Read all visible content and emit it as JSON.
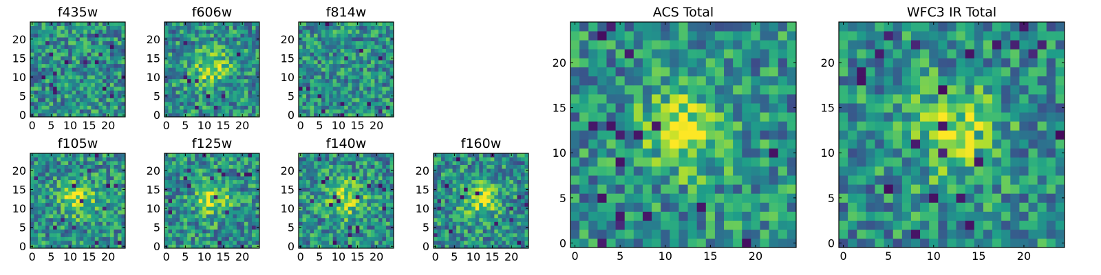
{
  "chart_data": [
    {
      "type": "heatmap",
      "title": "f435w",
      "grid_size": 25,
      "xlim": [
        0,
        24
      ],
      "ylim": [
        0,
        24
      ],
      "xticks": [
        "0",
        "5",
        "10",
        "15",
        "20"
      ],
      "yticks": [
        "0",
        "5",
        "10",
        "15",
        "20"
      ],
      "colormap": "viridis",
      "centered_blob": false
    },
    {
      "type": "heatmap",
      "title": "f606w",
      "grid_size": 25,
      "xlim": [
        0,
        24
      ],
      "ylim": [
        0,
        24
      ],
      "xticks": [
        "0",
        "5",
        "10",
        "15",
        "20"
      ],
      "yticks": [
        "0",
        "5",
        "10",
        "15",
        "20"
      ],
      "colormap": "viridis",
      "centered_blob": true
    },
    {
      "type": "heatmap",
      "title": "f814w",
      "grid_size": 25,
      "xlim": [
        0,
        24
      ],
      "ylim": [
        0,
        24
      ],
      "xticks": [
        "0",
        "5",
        "10",
        "15",
        "20"
      ],
      "yticks": [
        "0",
        "5",
        "10",
        "15",
        "20"
      ],
      "colormap": "viridis",
      "centered_blob": false
    },
    {
      "type": "heatmap",
      "title": "f105w",
      "grid_size": 25,
      "xlim": [
        0,
        24
      ],
      "ylim": [
        0,
        24
      ],
      "xticks": [
        "0",
        "5",
        "10",
        "15",
        "20"
      ],
      "yticks": [
        "0",
        "5",
        "10",
        "15",
        "20"
      ],
      "colormap": "viridis",
      "centered_blob": true
    },
    {
      "type": "heatmap",
      "title": "f125w",
      "grid_size": 25,
      "xlim": [
        0,
        24
      ],
      "ylim": [
        0,
        24
      ],
      "xticks": [
        "0",
        "5",
        "10",
        "15",
        "20"
      ],
      "yticks": [
        "0",
        "5",
        "10",
        "15",
        "20"
      ],
      "colormap": "viridis",
      "centered_blob": true
    },
    {
      "type": "heatmap",
      "title": "f140w",
      "grid_size": 25,
      "xlim": [
        0,
        24
      ],
      "ylim": [
        0,
        24
      ],
      "xticks": [
        "0",
        "5",
        "10",
        "15",
        "20"
      ],
      "yticks": [
        "0",
        "5",
        "10",
        "15",
        "20"
      ],
      "colormap": "viridis",
      "centered_blob": true
    },
    {
      "type": "heatmap",
      "title": "f160w",
      "grid_size": 25,
      "xlim": [
        0,
        24
      ],
      "ylim": [
        0,
        24
      ],
      "xticks": [
        "0",
        "5",
        "10",
        "15",
        "20"
      ],
      "yticks": [
        "0",
        "5",
        "10",
        "15",
        "20"
      ],
      "colormap": "viridis",
      "centered_blob": true
    },
    {
      "type": "heatmap",
      "title": "ACS Total",
      "grid_size": 25,
      "xlim": [
        0,
        24
      ],
      "ylim": [
        0,
        24
      ],
      "xticks": [
        "0",
        "5",
        "10",
        "15",
        "20"
      ],
      "yticks": [
        "0",
        "5",
        "10",
        "15",
        "20"
      ],
      "colormap": "viridis",
      "centered_blob": true
    },
    {
      "type": "heatmap",
      "title": "WFC3 IR Total",
      "grid_size": 25,
      "xlim": [
        0,
        24
      ],
      "ylim": [
        0,
        24
      ],
      "xticks": [
        "0",
        "5",
        "10",
        "15",
        "20"
      ],
      "yticks": [
        "0",
        "5",
        "10",
        "15",
        "20"
      ],
      "colormap": "viridis",
      "centered_blob": true
    }
  ]
}
